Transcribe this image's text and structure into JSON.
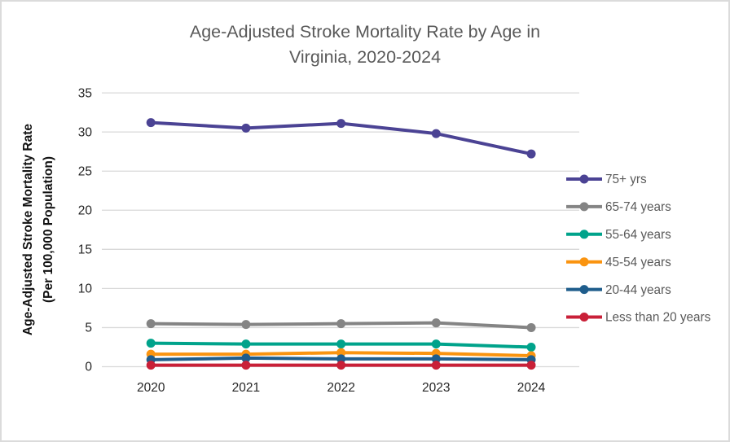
{
  "chart_data": {
    "type": "line",
    "title": "Age-Adjusted Stroke Mortality Rate by Age in Virginia, 2020-2024",
    "title_lines": [
      "Age-Adjusted Stroke Mortality Rate by Age in",
      "Virginia, 2020-2024"
    ],
    "ylabel": "Age-Adjusted Stroke Mortality Rate (Per 100,000 Population)",
    "ylabel_lines": [
      "Age-Adjusted Stroke Mortality Rate",
      "(Per 100,000 Population)"
    ],
    "xlabel": "",
    "categories": [
      "2020",
      "2021",
      "2022",
      "2023",
      "2024"
    ],
    "ylim": [
      0,
      35
    ],
    "ytick_step": 5,
    "grid": "horizontal",
    "legend_position": "right",
    "series": [
      {
        "name": "75+ yrs",
        "color": "#4B4394",
        "values": [
          31.2,
          30.5,
          31.1,
          29.8,
          27.2
        ]
      },
      {
        "name": "65-74 years",
        "color": "#848484",
        "values": [
          5.5,
          5.4,
          5.5,
          5.6,
          5.0
        ]
      },
      {
        "name": "55-64 years",
        "color": "#00A38B",
        "values": [
          3.0,
          2.9,
          2.9,
          2.9,
          2.5
        ]
      },
      {
        "name": "45-54 years",
        "color": "#FA9410",
        "values": [
          1.6,
          1.6,
          1.8,
          1.7,
          1.4
        ]
      },
      {
        "name": "20-44 years",
        "color": "#1F5D8C",
        "values": [
          0.9,
          1.1,
          1.0,
          1.0,
          0.9
        ]
      },
      {
        "name": "Less than 20 years",
        "color": "#C92038",
        "values": [
          0.2,
          0.2,
          0.2,
          0.2,
          0.2
        ]
      }
    ],
    "colors": {
      "title_text": "#595959",
      "axis_text": "#262626",
      "legend_text": "#595959",
      "gridline": "#D9D9D9"
    }
  }
}
